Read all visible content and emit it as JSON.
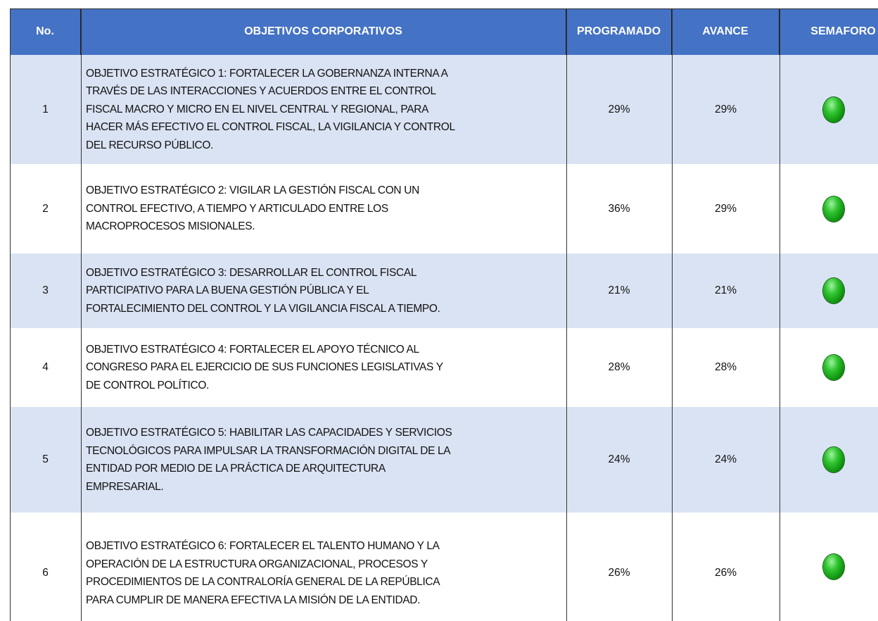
{
  "header": {
    "columns": [
      "No.",
      "OBJETIVOS CORPORATIVOS",
      "PROGRAMADO",
      "AVANCE",
      "SEMAFORO"
    ]
  },
  "table": {
    "rows": [
      {
        "no": "1",
        "objective": [
          "OBJETIVO ESTRATÉGICO 1: FORTALECER LA GOBERNANZA INTERNA A",
          "TRAVÉS DE LAS INTERACCIONES Y ACUERDOS ENTRE EL CONTROL",
          "FISCAL MACRO Y MICRO EN EL NIVEL CENTRAL Y REGIONAL, PARA",
          "HACER MÁS EFECTIVO EL CONTROL FISCAL, LA VIGILANCIA Y CONTROL",
          "DEL RECURSO PÚBLICO."
        ],
        "programado": "29%",
        "avance": "29%"
      },
      {
        "no": "2",
        "objective": [
          "OBJETIVO ESTRATÉGICO 2: VIGILAR LA GESTIÓN FISCAL CON UN",
          "CONTROL EFECTIVO, A TIEMPO Y ARTICULADO ENTRE LOS",
          "MACROPROCESOS MISIONALES."
        ],
        "programado": "36%",
        "avance": "29%"
      },
      {
        "no": "3",
        "objective": [
          "OBJETIVO ESTRATÉGICO  3: DESARROLLAR EL CONTROL FISCAL",
          "PARTICIPATIVO PARA LA BUENA GESTIÓN PÚBLICA Y EL",
          "FORTALECIMIENTO DEL CONTROL Y LA VIGILANCIA FISCAL A TIEMPO."
        ],
        "programado": "21%",
        "avance": "21%"
      },
      {
        "no": "4",
        "objective": [
          "OBJETIVO ESTRATÉGICO  4: FORTALECER EL APOYO TÉCNICO AL",
          "CONGRESO PARA EL EJERCICIO DE SUS FUNCIONES LEGISLATIVAS Y",
          "DE CONTROL POLÍTICO."
        ],
        "programado": "28%",
        "avance": "28%"
      },
      {
        "no": "5",
        "objective": [
          "OBJETIVO ESTRATÉGICO  5: HABILITAR LAS CAPACIDADES Y SERVICIOS",
          "TECNOLÓGICOS PARA IMPULSAR LA TRANSFORMACIÓN DIGITAL DE LA",
          "ENTIDAD POR MEDIO DE LA PRÁCTICA DE ARQUITECTURA",
          "EMPRESARIAL."
        ],
        "programado": "24%",
        "avance": "24%"
      },
      {
        "no": "6",
        "objective": [
          "OBJETIVO ESTRATÉGICO  6: FORTALECER EL TALENTO HUMANO Y LA",
          "OPERACIÓN DE LA ESTRUCTURA ORGANIZACIONAL, PROCESOS Y",
          "PROCEDIMIENTOS DE LA CONTRALORÍA GENERAL DE LA REPÚBLICA",
          "PARA CUMPLIR DE MANERA EFECTIVA LA MISIÓN DE LA ENTIDAD."
        ],
        "programado": "26%",
        "avance": "26%"
      }
    ]
  }
}
